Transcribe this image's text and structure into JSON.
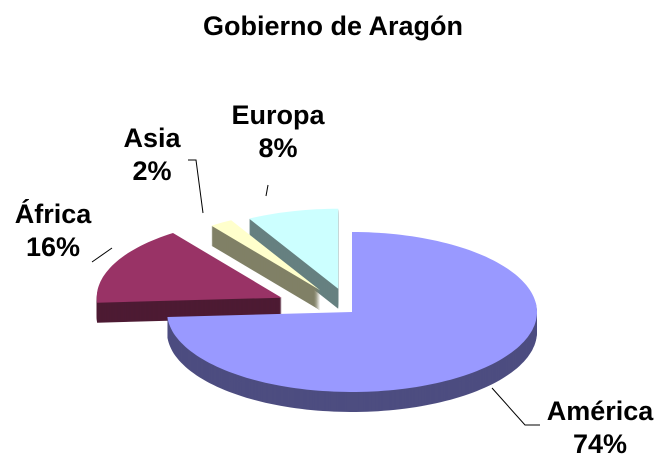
{
  "chart_data": {
    "type": "pie",
    "title": "Gobierno de Aragón",
    "categories": [
      "América",
      "África",
      "Asia",
      "Europa"
    ],
    "values": [
      74,
      16,
      2,
      8
    ],
    "value_labels": [
      "74%",
      "16%",
      "2%",
      "8%"
    ],
    "colors": [
      "#9999ff",
      "#993366",
      "#ffffcc",
      "#ccffff"
    ]
  }
}
